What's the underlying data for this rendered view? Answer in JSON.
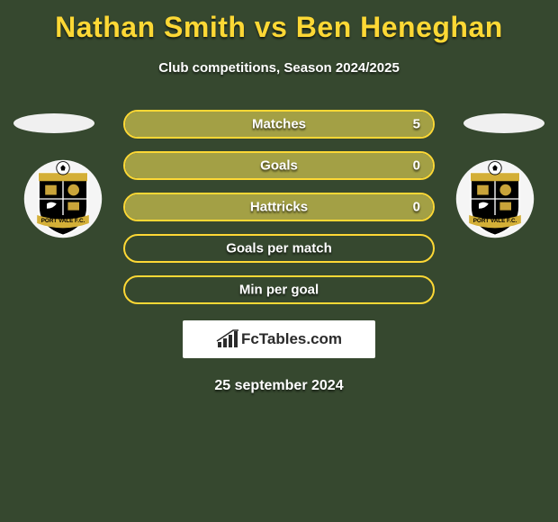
{
  "header": {
    "title": "Nathan Smith vs Ben Heneghan",
    "subtitle": "Club competitions, Season 2024/2025",
    "title_color": "#fdd835",
    "title_fontsize": 32
  },
  "background_color": "#36482f",
  "bar_border_color": "#fdd835",
  "bar_fill_color": "#a3a045",
  "stats": [
    {
      "label": "Matches",
      "left_val": "",
      "right_val": "5",
      "left_fill_pct": 0,
      "right_fill_pct": 100
    },
    {
      "label": "Goals",
      "left_val": "",
      "right_val": "0",
      "left_fill_pct": 50,
      "right_fill_pct": 50
    },
    {
      "label": "Hattricks",
      "left_val": "",
      "right_val": "0",
      "left_fill_pct": 50,
      "right_fill_pct": 50
    },
    {
      "label": "Goals per match",
      "left_val": "",
      "right_val": "",
      "left_fill_pct": 0,
      "right_fill_pct": 0
    },
    {
      "label": "Min per goal",
      "left_val": "",
      "right_val": "",
      "left_fill_pct": 0,
      "right_fill_pct": 0
    }
  ],
  "branding": {
    "text": "FcTables.com"
  },
  "date": "25 september 2024",
  "club_crest": {
    "shield_fill": "#000000",
    "shield_stroke": "#ffffff",
    "ball_colors": [
      "#ffffff",
      "#000000"
    ],
    "banner_text": "PORT VALE F.C.",
    "banner_color": "#d4af37"
  }
}
